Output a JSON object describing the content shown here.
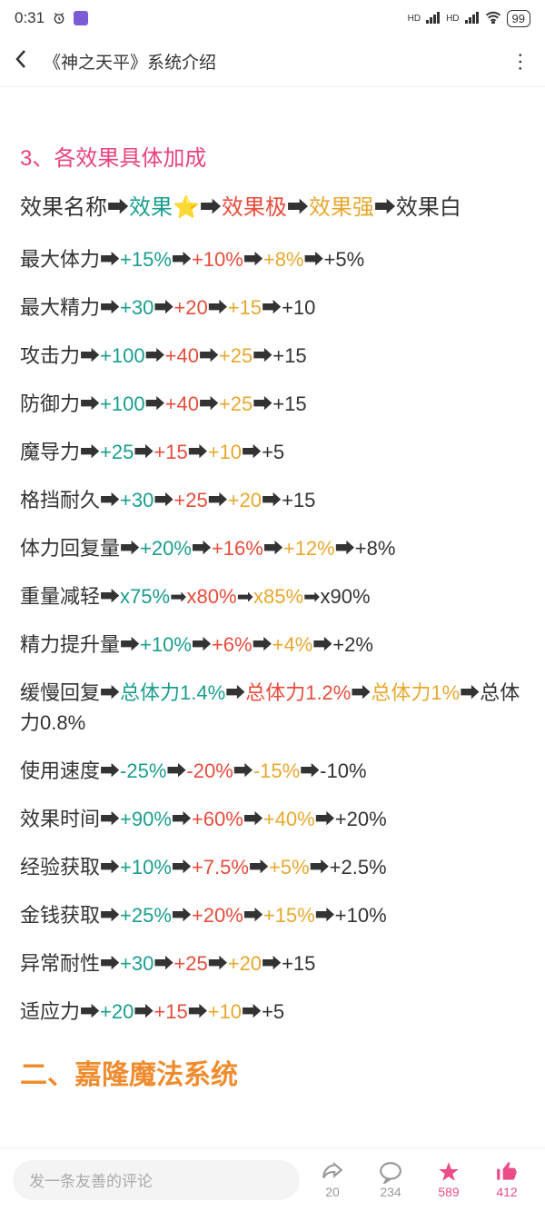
{
  "status": {
    "time": "0:31",
    "signal_label_1": "HD",
    "signal_label_2": "HD",
    "battery": "99"
  },
  "header": {
    "title": "《神之天平》系统介绍"
  },
  "colors": {
    "teal": "#1a9e8f",
    "red": "#e74c3c",
    "gold": "#e8a82e",
    "dark": "#333333",
    "pink": "#e8447a",
    "orange": "#f08c2e",
    "star": "#f5c842"
  },
  "section1_title": "3、各效果具体加成",
  "col_headers": {
    "name": "效果名称",
    "star_label": "效果",
    "star_glyph": "⭐",
    "ji": "效果极",
    "qiang": "效果强",
    "bai": "效果白"
  },
  "rows": [
    {
      "name": "最大体力",
      "v": [
        "+15%",
        "+10%",
        "+8%",
        "+5%"
      ]
    },
    {
      "name": "最大精力",
      "v": [
        "+30",
        "+20",
        "+15",
        "+10"
      ]
    },
    {
      "name": "攻击力",
      "v": [
        "+100",
        "+40",
        "+25",
        "+15"
      ]
    },
    {
      "name": "防御力",
      "v": [
        "+100",
        "+40",
        "+25",
        "+15"
      ]
    },
    {
      "name": "魔导力",
      "v": [
        "+25",
        "+15",
        "+10",
        "+5"
      ]
    },
    {
      "name": "格挡耐久",
      "v": [
        "+30",
        "+25",
        "+20",
        "+15"
      ]
    },
    {
      "name": "体力回复量",
      "v": [
        "+20%",
        "+16%",
        "+12%",
        "+8%"
      ]
    },
    {
      "name": "重量减轻",
      "v": [
        "x75%",
        "x80%",
        "x85%",
        "x90%"
      ]
    },
    {
      "name": "精力提升量",
      "v": [
        "+10%",
        "+6%",
        "+4%",
        "+2%"
      ]
    },
    {
      "name": "缓慢回复",
      "v": [
        "总体力1.4%",
        "总体力1.2%",
        "总体力1%",
        "总体力0.8%"
      ]
    },
    {
      "name": "使用速度",
      "v": [
        "-25%",
        "-20%",
        "-15%",
        "-10%"
      ]
    },
    {
      "name": "效果时间",
      "v": [
        "+90%",
        "+60%",
        "+40%",
        "+20%"
      ]
    },
    {
      "name": "经验获取",
      "v": [
        "+10%",
        "+7.5%",
        "+5%",
        "+2.5%"
      ]
    },
    {
      "name": "金钱获取",
      "v": [
        "+25%",
        "+20%",
        "+15%",
        "+10%"
      ]
    },
    {
      "name": "异常耐性",
      "v": [
        "+30",
        "+25",
        "+20",
        "+15"
      ]
    },
    {
      "name": "适应力",
      "v": [
        "+20",
        "+15",
        "+10",
        "+5"
      ]
    }
  ],
  "arrow": "➡",
  "section2_title": "二、嘉隆魔法系统",
  "bottom": {
    "placeholder": "发一条友善的评论",
    "share": "20",
    "comment": "234",
    "star": "589",
    "like": "412"
  }
}
